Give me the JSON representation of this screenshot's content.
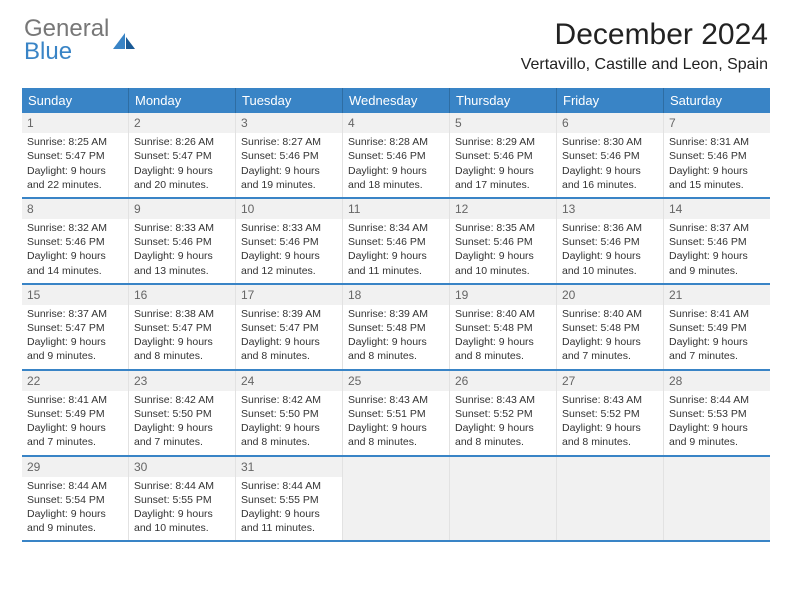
{
  "logo": {
    "line1": "General",
    "line2": "Blue"
  },
  "title": "December 2024",
  "location": "Vertavillo, Castille and Leon, Spain",
  "colors": {
    "header_bg": "#3984c6",
    "header_text": "#ffffff",
    "week_border": "#3984c6",
    "logo_gray": "#777777",
    "logo_blue": "#3984c6"
  },
  "dow": [
    "Sunday",
    "Monday",
    "Tuesday",
    "Wednesday",
    "Thursday",
    "Friday",
    "Saturday"
  ],
  "days": [
    {
      "n": "1",
      "sr": "8:25 AM",
      "ss": "5:47 PM",
      "dl": "9 hours and 22 minutes."
    },
    {
      "n": "2",
      "sr": "8:26 AM",
      "ss": "5:47 PM",
      "dl": "9 hours and 20 minutes."
    },
    {
      "n": "3",
      "sr": "8:27 AM",
      "ss": "5:46 PM",
      "dl": "9 hours and 19 minutes."
    },
    {
      "n": "4",
      "sr": "8:28 AM",
      "ss": "5:46 PM",
      "dl": "9 hours and 18 minutes."
    },
    {
      "n": "5",
      "sr": "8:29 AM",
      "ss": "5:46 PM",
      "dl": "9 hours and 17 minutes."
    },
    {
      "n": "6",
      "sr": "8:30 AM",
      "ss": "5:46 PM",
      "dl": "9 hours and 16 minutes."
    },
    {
      "n": "7",
      "sr": "8:31 AM",
      "ss": "5:46 PM",
      "dl": "9 hours and 15 minutes."
    },
    {
      "n": "8",
      "sr": "8:32 AM",
      "ss": "5:46 PM",
      "dl": "9 hours and 14 minutes."
    },
    {
      "n": "9",
      "sr": "8:33 AM",
      "ss": "5:46 PM",
      "dl": "9 hours and 13 minutes."
    },
    {
      "n": "10",
      "sr": "8:33 AM",
      "ss": "5:46 PM",
      "dl": "9 hours and 12 minutes."
    },
    {
      "n": "11",
      "sr": "8:34 AM",
      "ss": "5:46 PM",
      "dl": "9 hours and 11 minutes."
    },
    {
      "n": "12",
      "sr": "8:35 AM",
      "ss": "5:46 PM",
      "dl": "9 hours and 10 minutes."
    },
    {
      "n": "13",
      "sr": "8:36 AM",
      "ss": "5:46 PM",
      "dl": "9 hours and 10 minutes."
    },
    {
      "n": "14",
      "sr": "8:37 AM",
      "ss": "5:46 PM",
      "dl": "9 hours and 9 minutes."
    },
    {
      "n": "15",
      "sr": "8:37 AM",
      "ss": "5:47 PM",
      "dl": "9 hours and 9 minutes."
    },
    {
      "n": "16",
      "sr": "8:38 AM",
      "ss": "5:47 PM",
      "dl": "9 hours and 8 minutes."
    },
    {
      "n": "17",
      "sr": "8:39 AM",
      "ss": "5:47 PM",
      "dl": "9 hours and 8 minutes."
    },
    {
      "n": "18",
      "sr": "8:39 AM",
      "ss": "5:48 PM",
      "dl": "9 hours and 8 minutes."
    },
    {
      "n": "19",
      "sr": "8:40 AM",
      "ss": "5:48 PM",
      "dl": "9 hours and 8 minutes."
    },
    {
      "n": "20",
      "sr": "8:40 AM",
      "ss": "5:48 PM",
      "dl": "9 hours and 7 minutes."
    },
    {
      "n": "21",
      "sr": "8:41 AM",
      "ss": "5:49 PM",
      "dl": "9 hours and 7 minutes."
    },
    {
      "n": "22",
      "sr": "8:41 AM",
      "ss": "5:49 PM",
      "dl": "9 hours and 7 minutes."
    },
    {
      "n": "23",
      "sr": "8:42 AM",
      "ss": "5:50 PM",
      "dl": "9 hours and 7 minutes."
    },
    {
      "n": "24",
      "sr": "8:42 AM",
      "ss": "5:50 PM",
      "dl": "9 hours and 8 minutes."
    },
    {
      "n": "25",
      "sr": "8:43 AM",
      "ss": "5:51 PM",
      "dl": "9 hours and 8 minutes."
    },
    {
      "n": "26",
      "sr": "8:43 AM",
      "ss": "5:52 PM",
      "dl": "9 hours and 8 minutes."
    },
    {
      "n": "27",
      "sr": "8:43 AM",
      "ss": "5:52 PM",
      "dl": "9 hours and 8 minutes."
    },
    {
      "n": "28",
      "sr": "8:44 AM",
      "ss": "5:53 PM",
      "dl": "9 hours and 9 minutes."
    },
    {
      "n": "29",
      "sr": "8:44 AM",
      "ss": "5:54 PM",
      "dl": "9 hours and 9 minutes."
    },
    {
      "n": "30",
      "sr": "8:44 AM",
      "ss": "5:55 PM",
      "dl": "9 hours and 10 minutes."
    },
    {
      "n": "31",
      "sr": "8:44 AM",
      "ss": "5:55 PM",
      "dl": "9 hours and 11 minutes."
    }
  ],
  "labels": {
    "sunrise": "Sunrise:",
    "sunset": "Sunset:",
    "daylight": "Daylight:"
  },
  "first_dow_offset": 0,
  "trailing_empty": 4
}
